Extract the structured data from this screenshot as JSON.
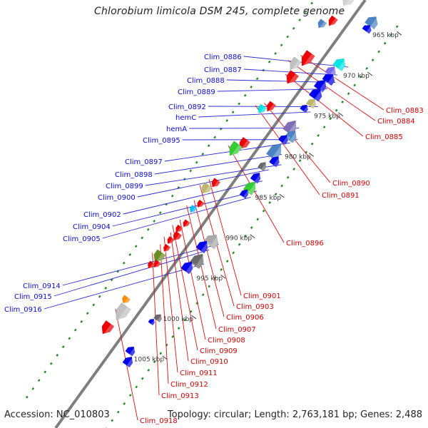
{
  "header": {
    "title": "Chlorobium limicola DSM 245, complete genome",
    "accession": "Accession: NC_010803",
    "summary": "Topology: circular; Length: 2,763,181 bp; Genes: 2,488"
  },
  "colors": {
    "backbone": "#7f7f7f",
    "forward_label": "#0b0bcc",
    "reverse_label": "#cc0000",
    "leader_fwd": "#2b2bd0",
    "leader_rev": "#d61010",
    "tick": "#228b22",
    "ruler": "#333333"
  },
  "ruler_labels": [
    {
      "text": "965 kbp"
    },
    {
      "text": "970 kbp"
    },
    {
      "text": "975 kbp"
    },
    {
      "text": "980 kbp"
    },
    {
      "text": "985 kbp"
    },
    {
      "text": "990 kbp"
    },
    {
      "text": "995 kbp"
    },
    {
      "text": "1000 kbp"
    },
    {
      "text": "1005 kbp"
    }
  ],
  "forward_labels": [
    {
      "text": "Clim_0886"
    },
    {
      "text": "Clim_0887"
    },
    {
      "text": "Clim_0888"
    },
    {
      "text": "Clim_0889"
    },
    {
      "text": "Clim_0892"
    },
    {
      "text": "hemC"
    },
    {
      "text": "hemA"
    },
    {
      "text": "Clim_0895"
    },
    {
      "text": "Clim_0897"
    },
    {
      "text": "Clim_0898"
    },
    {
      "text": "Clim_0899"
    },
    {
      "text": "Clim_0900"
    },
    {
      "text": "Clim_0902"
    },
    {
      "text": "Clim_0904"
    },
    {
      "text": "Clim_0905"
    },
    {
      "text": "Clim_0914"
    },
    {
      "text": "Clim_0915"
    },
    {
      "text": "Clim_0916"
    }
  ],
  "reverse_labels": [
    {
      "text": "Clim_0883"
    },
    {
      "text": "Clim_0884"
    },
    {
      "text": "Clim_0885"
    },
    {
      "text": "Clim_0890"
    },
    {
      "text": "Clim_0891"
    },
    {
      "text": "Clim_0896"
    },
    {
      "text": "Clim_0901"
    },
    {
      "text": "Clim_0903"
    },
    {
      "text": "Clim_0906"
    },
    {
      "text": "Clim_0907"
    },
    {
      "text": "Clim_0908"
    },
    {
      "text": "Clim_0909"
    },
    {
      "text": "Clim_0910"
    },
    {
      "text": "Clim_0911"
    },
    {
      "text": "Clim_0912"
    },
    {
      "text": "Clim_0913"
    },
    {
      "text": "Clim_0918"
    }
  ],
  "forward_genes": [
    {
      "color": "#4a84c4"
    },
    {
      "color": "#0000ee"
    },
    {
      "color": "#00e5e5"
    },
    {
      "color": "#7b68ee"
    },
    {
      "color": "#0000ee"
    },
    {
      "color": "#0000ee"
    },
    {
      "color": "#0000ee"
    },
    {
      "color": "#bdb76b"
    },
    {
      "color": "#0000ee"
    },
    {
      "color": "#7e70b8"
    },
    {
      "color": "#4a84c4"
    },
    {
      "color": "#0000ee"
    },
    {
      "color": "#4a84c4"
    },
    {
      "color": "#0000ee"
    },
    {
      "color": "#696969"
    },
    {
      "color": "#0000ee"
    },
    {
      "color": "#32cd32"
    },
    {
      "color": "#0000ee"
    },
    {
      "color": "#a9a9a9"
    },
    {
      "color": "#0000ee"
    },
    {
      "color": "#696969"
    },
    {
      "color": "#0000ee"
    },
    {
      "color": "#696969"
    },
    {
      "color": "#0000ee"
    },
    {
      "color": "#0000ee"
    },
    {
      "color": "#0000ee"
    }
  ],
  "reverse_genes": [
    {
      "color": "#d3d3d3"
    },
    {
      "color": "#ee0000"
    },
    {
      "color": "#4a84c4"
    },
    {
      "color": "#ee0000"
    },
    {
      "color": "#c0c0c0"
    },
    {
      "color": "#ee0000"
    },
    {
      "color": "#ee0000"
    },
    {
      "color": "#00e5e5"
    },
    {
      "color": "#ee0000"
    },
    {
      "color": "#32cd32"
    },
    {
      "color": "#ee0000"
    },
    {
      "color": "#bdb76b"
    },
    {
      "color": "#ee0000"
    },
    {
      "color": "#00bfff"
    },
    {
      "color": "#ee0000"
    },
    {
      "color": "#ee0000"
    },
    {
      "color": "#ee0000"
    },
    {
      "color": "#ee0000"
    },
    {
      "color": "#ee0000"
    },
    {
      "color": "#6b8e23"
    },
    {
      "color": "#ee0000"
    },
    {
      "color": "#ee0000"
    },
    {
      "color": "#ff8c00"
    },
    {
      "color": "#c0c0c0"
    },
    {
      "color": "#ee0000"
    }
  ]
}
